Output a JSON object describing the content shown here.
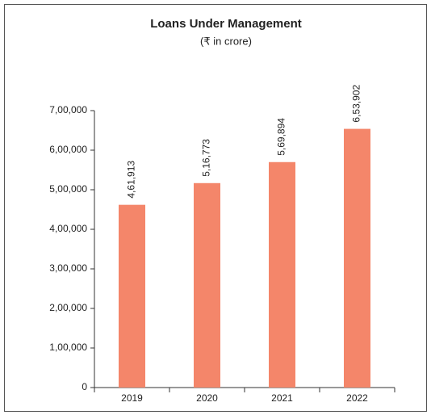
{
  "chart_data": {
    "type": "bar",
    "title": "Loans Under Management",
    "subtitle": "(₹ in crore)",
    "categories": [
      "2019",
      "2020",
      "2021",
      "2022"
    ],
    "values": [
      461913,
      516773,
      569894,
      653902
    ],
    "value_labels": [
      "4,61,913",
      "5,16,773",
      "5,69,894",
      "6,53,902"
    ],
    "color": "#f4866a",
    "ylim": [
      0,
      700000
    ],
    "yticks": [
      0,
      {
        "value": 100000,
        "label": "1,00,000"
      },
      {
        "value": 200000,
        "label": "2,00,000"
      },
      {
        "value": 300000,
        "label": "3,00,000"
      },
      {
        "value": 400000,
        "label": "4,00,000"
      },
      {
        "value": 500000,
        "label": "5,00,000"
      },
      {
        "value": 600000,
        "label": "6,00,000"
      },
      {
        "value": 700000,
        "label": "7,00,000"
      }
    ]
  }
}
